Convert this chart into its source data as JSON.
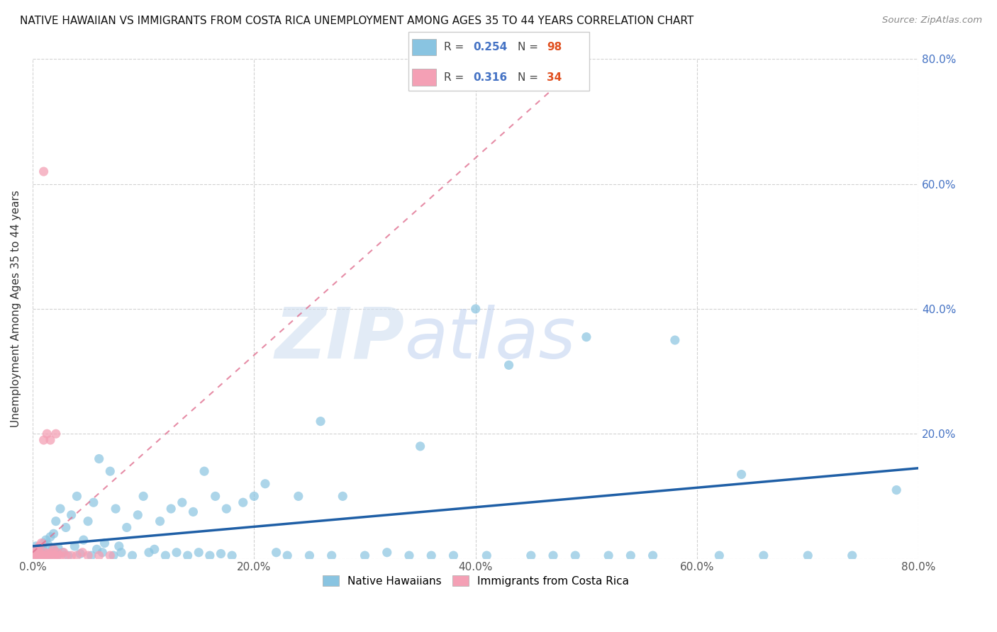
{
  "title": "NATIVE HAWAIIAN VS IMMIGRANTS FROM COSTA RICA UNEMPLOYMENT AMONG AGES 35 TO 44 YEARS CORRELATION CHART",
  "source": "Source: ZipAtlas.com",
  "ylabel": "Unemployment Among Ages 35 to 44 years",
  "xlim": [
    0.0,
    0.8
  ],
  "ylim": [
    0.0,
    0.8
  ],
  "blue_color": "#89c4e1",
  "pink_color": "#f4a0b5",
  "blue_line_color": "#1f5fa6",
  "pink_line_color": "#e07090",
  "watermark_zip": "ZIP",
  "watermark_atlas": "atlas",
  "legend_R1": "0.254",
  "legend_N1": "98",
  "legend_R2": "0.316",
  "legend_N2": "34",
  "legend_label1": "Native Hawaiians",
  "legend_label2": "Immigrants from Costa Rica",
  "R_color": "#4472c4",
  "N_color": "#e05020",
  "blue_scatter_x": [
    0.001,
    0.002,
    0.003,
    0.004,
    0.005,
    0.006,
    0.007,
    0.008,
    0.009,
    0.01,
    0.01,
    0.011,
    0.012,
    0.013,
    0.014,
    0.015,
    0.016,
    0.017,
    0.018,
    0.019,
    0.02,
    0.021,
    0.022,
    0.023,
    0.025,
    0.027,
    0.03,
    0.032,
    0.035,
    0.038,
    0.04,
    0.043,
    0.046,
    0.05,
    0.053,
    0.055,
    0.058,
    0.06,
    0.063,
    0.065,
    0.07,
    0.073,
    0.075,
    0.078,
    0.08,
    0.085,
    0.09,
    0.095,
    0.1,
    0.105,
    0.11,
    0.115,
    0.12,
    0.125,
    0.13,
    0.135,
    0.14,
    0.145,
    0.15,
    0.155,
    0.16,
    0.165,
    0.17,
    0.175,
    0.18,
    0.19,
    0.2,
    0.21,
    0.22,
    0.23,
    0.24,
    0.25,
    0.26,
    0.27,
    0.28,
    0.3,
    0.32,
    0.34,
    0.35,
    0.36,
    0.38,
    0.4,
    0.41,
    0.43,
    0.45,
    0.47,
    0.49,
    0.5,
    0.52,
    0.54,
    0.56,
    0.58,
    0.62,
    0.64,
    0.66,
    0.7,
    0.74,
    0.78
  ],
  "blue_scatter_y": [
    0.01,
    0.005,
    0.02,
    0.008,
    0.015,
    0.003,
    0.012,
    0.007,
    0.018,
    0.004,
    0.025,
    0.009,
    0.03,
    0.006,
    0.022,
    0.005,
    0.035,
    0.008,
    0.015,
    0.04,
    0.012,
    0.06,
    0.005,
    0.018,
    0.08,
    0.01,
    0.05,
    0.005,
    0.07,
    0.02,
    0.1,
    0.008,
    0.03,
    0.06,
    0.005,
    0.09,
    0.015,
    0.16,
    0.01,
    0.025,
    0.14,
    0.005,
    0.08,
    0.02,
    0.01,
    0.05,
    0.005,
    0.07,
    0.1,
    0.01,
    0.015,
    0.06,
    0.005,
    0.08,
    0.01,
    0.09,
    0.005,
    0.075,
    0.01,
    0.14,
    0.005,
    0.1,
    0.008,
    0.08,
    0.005,
    0.09,
    0.1,
    0.12,
    0.01,
    0.005,
    0.1,
    0.005,
    0.22,
    0.005,
    0.1,
    0.005,
    0.01,
    0.005,
    0.18,
    0.005,
    0.005,
    0.4,
    0.005,
    0.31,
    0.005,
    0.005,
    0.005,
    0.355,
    0.005,
    0.005,
    0.005,
    0.35,
    0.005,
    0.135,
    0.005,
    0.005,
    0.005,
    0.11
  ],
  "pink_scatter_x": [
    0.001,
    0.002,
    0.003,
    0.004,
    0.005,
    0.006,
    0.007,
    0.008,
    0.009,
    0.01,
    0.01,
    0.011,
    0.012,
    0.013,
    0.014,
    0.015,
    0.016,
    0.017,
    0.018,
    0.019,
    0.02,
    0.021,
    0.022,
    0.023,
    0.025,
    0.028,
    0.03,
    0.035,
    0.04,
    0.045,
    0.05,
    0.06,
    0.07,
    0.01
  ],
  "pink_scatter_y": [
    0.005,
    0.01,
    0.003,
    0.015,
    0.005,
    0.02,
    0.008,
    0.025,
    0.005,
    0.005,
    0.19,
    0.01,
    0.005,
    0.2,
    0.008,
    0.005,
    0.19,
    0.01,
    0.005,
    0.015,
    0.005,
    0.2,
    0.01,
    0.005,
    0.005,
    0.01,
    0.005,
    0.005,
    0.005,
    0.01,
    0.005,
    0.005,
    0.005,
    0.62
  ],
  "blue_line_x": [
    0.0,
    0.8
  ],
  "blue_line_y": [
    0.02,
    0.145
  ],
  "pink_line_x": [
    0.0,
    0.5
  ],
  "pink_line_y": [
    0.01,
    0.8
  ]
}
